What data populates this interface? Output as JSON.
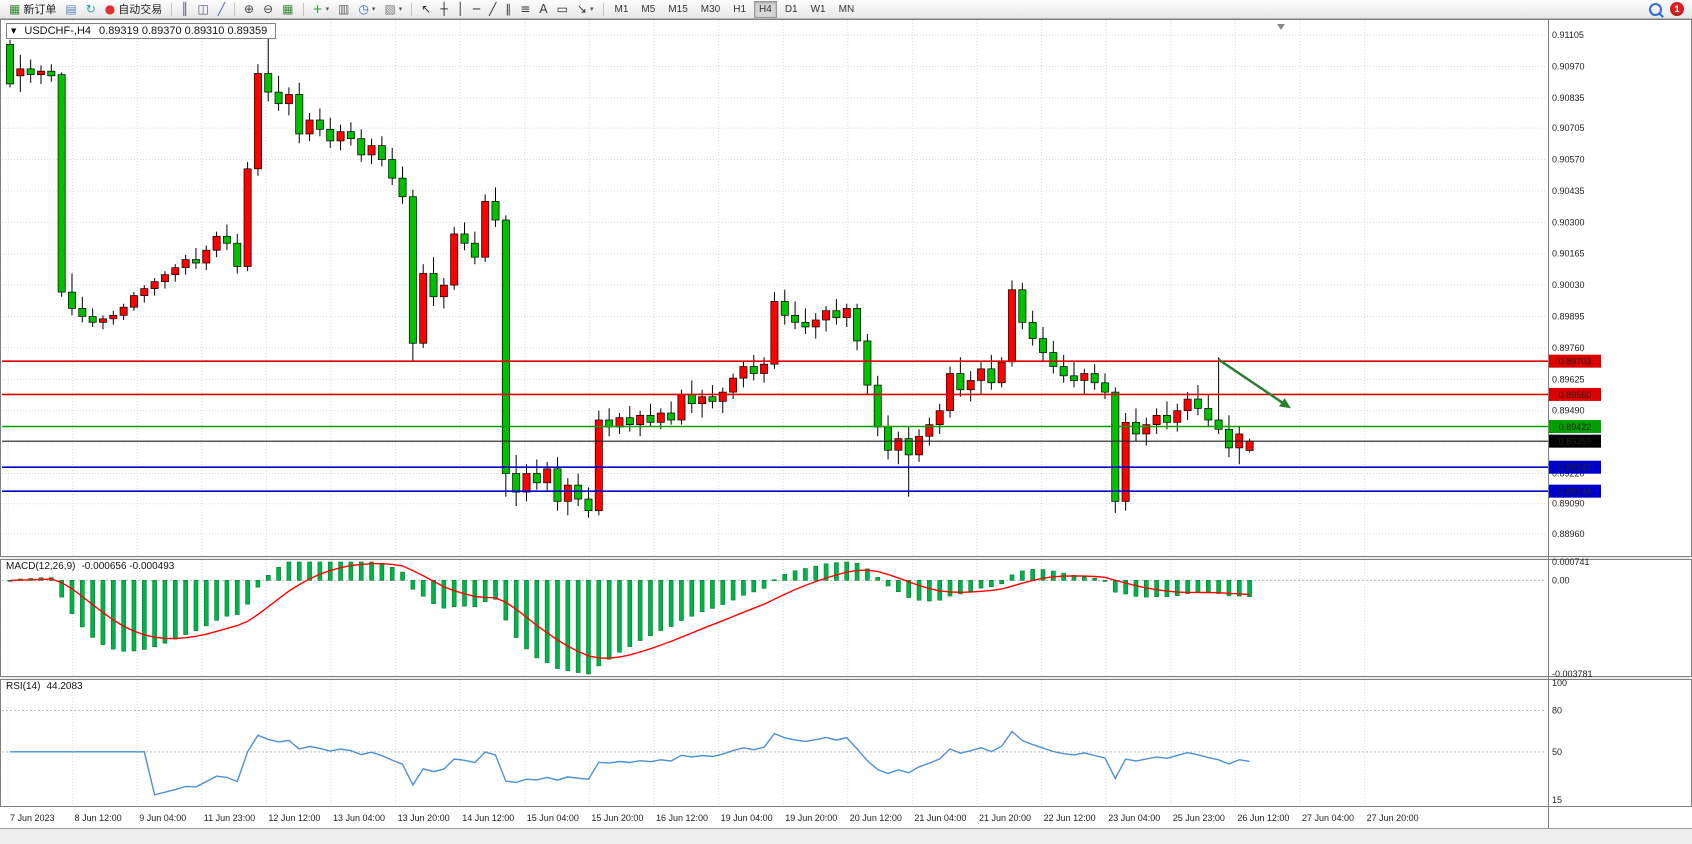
{
  "toolbar": {
    "groups": [
      [
        {
          "name": "new-order",
          "label": "新订单",
          "glyph": "▦",
          "glyph_color": "#2e8b2e"
        },
        {
          "name": "charts-profile",
          "glyph": "▤",
          "glyph_color": "#5b7fc4"
        },
        {
          "name": "refresh",
          "glyph": "↻",
          "glyph_color": "#2f9e9e"
        },
        {
          "name": "autotrade",
          "label": "自动交易",
          "glyph": "●",
          "glyph_color": "#e03030"
        }
      ],
      [
        {
          "name": "bar-chart",
          "glyph": "║",
          "glyph_color": "#555577"
        },
        {
          "name": "candlestick-chart",
          "glyph": "◫",
          "glyph_color": "#555577"
        },
        {
          "name": "line-chart",
          "glyph": "╱",
          "glyph_color": "#4466aa"
        }
      ],
      [
        {
          "name": "zoom-in",
          "glyph": "⊕",
          "glyph_color": "#444444"
        },
        {
          "name": "zoom-out",
          "glyph": "⊖",
          "glyph_color": "#444444"
        },
        {
          "name": "tile-windows",
          "glyph": "▦",
          "glyph_color": "#3c8a3c"
        }
      ],
      [
        {
          "name": "indicators",
          "glyph": "+",
          "glyph_color": "#1fa01f",
          "dropdown": true
        },
        {
          "name": "indicator-windows",
          "glyph": "▥",
          "glyph_color": "#666666"
        },
        {
          "name": "periods",
          "glyph": "◷",
          "glyph_color": "#3366cc",
          "dropdown": true
        },
        {
          "name": "templates",
          "glyph": "▧",
          "glyph_color": "#777777",
          "dropdown": true
        }
      ],
      [
        {
          "name": "cursor",
          "glyph": "↖",
          "glyph_color": "#333333"
        },
        {
          "name": "crosshair",
          "glyph": "┼",
          "glyph_color": "#333333"
        },
        {
          "name": "vertical-line",
          "glyph": "│",
          "glyph_color": "#333333"
        },
        {
          "name": "horizontal-line",
          "glyph": "─",
          "glyph_color": "#333333"
        },
        {
          "name": "trendline",
          "glyph": "╱",
          "glyph_color": "#333333"
        },
        {
          "name": "equidistant-channel",
          "glyph": "∥",
          "glyph_color": "#333333"
        },
        {
          "name": "fibonacci",
          "glyph": "≡",
          "glyph_color": "#333333"
        },
        {
          "name": "text",
          "glyph": "A",
          "glyph_color": "#333333"
        },
        {
          "name": "text-label",
          "glyph": "▭",
          "glyph_color": "#333333"
        },
        {
          "name": "arrows",
          "glyph": "↘",
          "glyph_color": "#333333",
          "dropdown": true
        }
      ]
    ],
    "timeframes": [
      "M1",
      "M5",
      "M15",
      "M30",
      "H1",
      "H4",
      "D1",
      "W1",
      "MN"
    ],
    "active_timeframe": "H4",
    "notification_badge": "1"
  },
  "chart": {
    "symbol_period": "USDCHF-,H4",
    "ohlc_text": "0.89319 0.89370 0.89310 0.89359"
  },
  "indicators": {
    "macd": {
      "name": "MACD(12,26,9)",
      "values_text": "-0.000656 -0.000493"
    },
    "rsi": {
      "name": "RSI(14)",
      "values_text": "44.2083"
    }
  },
  "chart_data": {
    "type": "candlestick",
    "title": "USDCHF-,H4",
    "symbol": "USDCHF-",
    "timeframe": "H4",
    "current_ohlc": {
      "open": 0.89319,
      "high": 0.8937,
      "low": 0.8931,
      "close": 0.89359
    },
    "up_color": "#ff0000",
    "down_color": "#00c000",
    "price_axis": [
      "0.91105",
      "0.90970",
      "0.90835",
      "0.90705",
      "0.90570",
      "0.90435",
      "0.90300",
      "0.90165",
      "0.90030",
      "0.89895",
      "0.89760",
      "0.89625",
      "0.89490",
      "0.89355",
      "0.89220",
      "0.89090",
      "0.88960"
    ],
    "time_axis": [
      "7 Jun 2023",
      "8 Jun 12:00",
      "9 Jun 04:00",
      "11 Jun 23:00",
      "12 Jun 12:00",
      "13 Jun 04:00",
      "13 Jun 20:00",
      "14 Jun 12:00",
      "15 Jun 04:00",
      "15 Jun 20:00",
      "16 Jun 12:00",
      "19 Jun 04:00",
      "19 Jun 20:00",
      "20 Jun 12:00",
      "21 Jun 04:00",
      "21 Jun 20:00",
      "22 Jun 12:00",
      "23 Jun 04:00",
      "25 Jun 23:00",
      "26 Jun 12:00",
      "27 Jun 04:00",
      "27 Jun 20:00"
    ],
    "levels": [
      {
        "price": 0.89703,
        "label": "0.89703",
        "color": "#dd0000"
      },
      {
        "price": 0.8956,
        "label": "0.89560",
        "color": "#dd0000"
      },
      {
        "price": 0.89422,
        "label": "0.89422",
        "color": "#00a000"
      },
      {
        "price": 0.89247,
        "label": "0.89247",
        "color": "#0000cc"
      },
      {
        "price": 0.89144,
        "label": "0.89144",
        "color": "#0000cc"
      }
    ],
    "bid": {
      "price": 0.89359,
      "label": "0.89359",
      "color": "#000000"
    },
    "trend_arrow": {
      "from_bar": 117,
      "from_price": 0.8971,
      "to_bar": 124,
      "to_price": 0.895,
      "color": "#2e7d32"
    },
    "macd": {
      "params": [
        12,
        26,
        9
      ],
      "current_macd": -0.000656,
      "current_signal": -0.000493,
      "axis": [
        "0.000741",
        "0.00",
        "-0.003781"
      ],
      "range": [
        -0.003781,
        0.000741
      ],
      "histogram_color": "#00b44a",
      "signal_color": "#ff0000"
    },
    "rsi": {
      "period": 14,
      "current": 44.2083,
      "axis": [
        "100",
        "80",
        "50",
        "15"
      ],
      "range": [
        15,
        100
      ],
      "levels": [
        80,
        50
      ],
      "line_color": "#4a90d9"
    },
    "candles": [
      [
        0.91065,
        0.91085,
        0.9088,
        0.90895
      ],
      [
        0.9093,
        0.9102,
        0.9086,
        0.9096
      ],
      [
        0.9096,
        0.91,
        0.909,
        0.90935
      ],
      [
        0.90935,
        0.90975,
        0.90895,
        0.9095
      ],
      [
        0.9095,
        0.9098,
        0.90905,
        0.9093
      ],
      [
        0.90935,
        0.90945,
        0.8998,
        0.9
      ],
      [
        0.9,
        0.9008,
        0.899,
        0.8993
      ],
      [
        0.8993,
        0.8998,
        0.8987,
        0.89895
      ],
      [
        0.89895,
        0.8993,
        0.8985,
        0.8987
      ],
      [
        0.8987,
        0.899,
        0.8984,
        0.89885
      ],
      [
        0.89885,
        0.8992,
        0.8986,
        0.899
      ],
      [
        0.899,
        0.8995,
        0.8988,
        0.89935
      ],
      [
        0.89935,
        0.9,
        0.8992,
        0.89985
      ],
      [
        0.89985,
        0.9003,
        0.89955,
        0.90015
      ],
      [
        0.90015,
        0.9006,
        0.89985,
        0.90045
      ],
      [
        0.90045,
        0.9009,
        0.90015,
        0.90075
      ],
      [
        0.90075,
        0.9012,
        0.90045,
        0.90105
      ],
      [
        0.90105,
        0.9016,
        0.90075,
        0.9014
      ],
      [
        0.9014,
        0.9019,
        0.901,
        0.90125
      ],
      [
        0.90125,
        0.902,
        0.90095,
        0.9018
      ],
      [
        0.9018,
        0.9026,
        0.9015,
        0.9024
      ],
      [
        0.9024,
        0.9029,
        0.9018,
        0.9021
      ],
      [
        0.9021,
        0.9025,
        0.9008,
        0.9011
      ],
      [
        0.9011,
        0.9056,
        0.9009,
        0.9053
      ],
      [
        0.9053,
        0.9098,
        0.905,
        0.9094
      ],
      [
        0.9094,
        0.911,
        0.9082,
        0.9086
      ],
      [
        0.9086,
        0.9093,
        0.9078,
        0.9081
      ],
      [
        0.9081,
        0.9088,
        0.9076,
        0.9085
      ],
      [
        0.9085,
        0.909,
        0.9064,
        0.9068
      ],
      [
        0.9068,
        0.9077,
        0.9065,
        0.9074
      ],
      [
        0.9074,
        0.9079,
        0.9067,
        0.907
      ],
      [
        0.907,
        0.9075,
        0.9062,
        0.9065
      ],
      [
        0.9065,
        0.9072,
        0.9061,
        0.9069
      ],
      [
        0.9069,
        0.9073,
        0.9063,
        0.9066
      ],
      [
        0.9066,
        0.907,
        0.9056,
        0.9059
      ],
      [
        0.9059,
        0.9066,
        0.9055,
        0.9063
      ],
      [
        0.9063,
        0.9067,
        0.9054,
        0.9057
      ],
      [
        0.9057,
        0.9062,
        0.9046,
        0.9049
      ],
      [
        0.9049,
        0.9054,
        0.9038,
        0.9041
      ],
      [
        0.9041,
        0.9044,
        0.897,
        0.8978
      ],
      [
        0.8978,
        0.9012,
        0.8976,
        0.9008
      ],
      [
        0.9008,
        0.9015,
        0.8994,
        0.8998
      ],
      [
        0.8998,
        0.9006,
        0.8993,
        0.9003
      ],
      [
        0.9003,
        0.9028,
        0.9001,
        0.9025
      ],
      [
        0.9025,
        0.903,
        0.9018,
        0.9021
      ],
      [
        0.9021,
        0.9026,
        0.9012,
        0.9015
      ],
      [
        0.9015,
        0.9042,
        0.9013,
        0.9039
      ],
      [
        0.9039,
        0.9045,
        0.9028,
        0.9031
      ],
      [
        0.9031,
        0.9033,
        0.8912,
        0.8922
      ],
      [
        0.8922,
        0.893,
        0.8908,
        0.8914
      ],
      [
        0.8914,
        0.8926,
        0.891,
        0.8922
      ],
      [
        0.8922,
        0.8928,
        0.8915,
        0.8918
      ],
      [
        0.8918,
        0.8927,
        0.8914,
        0.8924
      ],
      [
        0.8924,
        0.8929,
        0.8906,
        0.891
      ],
      [
        0.891,
        0.892,
        0.8904,
        0.8917
      ],
      [
        0.8917,
        0.8922,
        0.8908,
        0.8911
      ],
      [
        0.8911,
        0.8916,
        0.8903,
        0.8906
      ],
      [
        0.8906,
        0.8949,
        0.8904,
        0.8945
      ],
      [
        0.8945,
        0.895,
        0.8938,
        0.8942
      ],
      [
        0.8942,
        0.8948,
        0.8939,
        0.8946
      ],
      [
        0.8946,
        0.8951,
        0.894,
        0.8943
      ],
      [
        0.8943,
        0.8949,
        0.8938,
        0.8947
      ],
      [
        0.8947,
        0.8952,
        0.8942,
        0.8944
      ],
      [
        0.8944,
        0.895,
        0.8941,
        0.8948
      ],
      [
        0.8948,
        0.8953,
        0.8943,
        0.8945
      ],
      [
        0.8945,
        0.8958,
        0.8943,
        0.8956
      ],
      [
        0.8956,
        0.8962,
        0.8948,
        0.8952
      ],
      [
        0.8952,
        0.8958,
        0.8946,
        0.8955
      ],
      [
        0.8955,
        0.896,
        0.895,
        0.8953
      ],
      [
        0.8953,
        0.8959,
        0.8948,
        0.8957
      ],
      [
        0.8957,
        0.8965,
        0.8954,
        0.8963
      ],
      [
        0.8963,
        0.897,
        0.8959,
        0.8968
      ],
      [
        0.8968,
        0.8973,
        0.8962,
        0.8965
      ],
      [
        0.8965,
        0.8972,
        0.8961,
        0.8969
      ],
      [
        0.8969,
        0.9,
        0.8967,
        0.8996
      ],
      [
        0.8996,
        0.9001,
        0.8986,
        0.899
      ],
      [
        0.899,
        0.8996,
        0.8984,
        0.8987
      ],
      [
        0.8987,
        0.8993,
        0.8982,
        0.8985
      ],
      [
        0.8985,
        0.8991,
        0.898,
        0.8988
      ],
      [
        0.8988,
        0.8994,
        0.8983,
        0.8992
      ],
      [
        0.8992,
        0.8997,
        0.8986,
        0.8989
      ],
      [
        0.8989,
        0.8995,
        0.8985,
        0.8993
      ],
      [
        0.8993,
        0.8995,
        0.8975,
        0.8979
      ],
      [
        0.8979,
        0.8982,
        0.8956,
        0.896
      ],
      [
        0.896,
        0.8964,
        0.8938,
        0.8942
      ],
      [
        0.8942,
        0.8947,
        0.8928,
        0.8932
      ],
      [
        0.8932,
        0.894,
        0.8926,
        0.8937
      ],
      [
        0.8937,
        0.8942,
        0.8912,
        0.893
      ],
      [
        0.893,
        0.8941,
        0.8927,
        0.8938
      ],
      [
        0.8938,
        0.8946,
        0.8934,
        0.8943
      ],
      [
        0.8943,
        0.8952,
        0.8939,
        0.8949
      ],
      [
        0.8949,
        0.8968,
        0.8946,
        0.8965
      ],
      [
        0.8965,
        0.8972,
        0.8955,
        0.8958
      ],
      [
        0.8958,
        0.8966,
        0.8953,
        0.8962
      ],
      [
        0.8962,
        0.897,
        0.8956,
        0.8967
      ],
      [
        0.8967,
        0.8973,
        0.8958,
        0.8961
      ],
      [
        0.8961,
        0.8972,
        0.8959,
        0.897
      ],
      [
        0.897,
        0.9005,
        0.8968,
        0.9001
      ],
      [
        0.9001,
        0.9004,
        0.8984,
        0.8987
      ],
      [
        0.8987,
        0.8992,
        0.8977,
        0.898
      ],
      [
        0.898,
        0.8985,
        0.897,
        0.8974
      ],
      [
        0.8974,
        0.8979,
        0.8965,
        0.8968
      ],
      [
        0.8968,
        0.8973,
        0.8961,
        0.8964
      ],
      [
        0.8964,
        0.897,
        0.8959,
        0.8962
      ],
      [
        0.8962,
        0.8967,
        0.8956,
        0.8965
      ],
      [
        0.8965,
        0.8969,
        0.8958,
        0.8961
      ],
      [
        0.8961,
        0.8965,
        0.8954,
        0.8957
      ],
      [
        0.8957,
        0.8959,
        0.8905,
        0.891
      ],
      [
        0.891,
        0.8948,
        0.8906,
        0.8944
      ],
      [
        0.8944,
        0.895,
        0.8936,
        0.8939
      ],
      [
        0.8939,
        0.8946,
        0.8934,
        0.8943
      ],
      [
        0.8943,
        0.895,
        0.8939,
        0.8947
      ],
      [
        0.8947,
        0.8953,
        0.8941,
        0.8944
      ],
      [
        0.8944,
        0.8952,
        0.894,
        0.8949
      ],
      [
        0.8949,
        0.8957,
        0.8945,
        0.8954
      ],
      [
        0.8954,
        0.896,
        0.8947,
        0.895
      ],
      [
        0.895,
        0.8956,
        0.8942,
        0.8945
      ],
      [
        0.8945,
        0.8972,
        0.8939,
        0.8941
      ],
      [
        0.8941,
        0.8947,
        0.8929,
        0.8933
      ],
      [
        0.8933,
        0.8942,
        0.8926,
        0.8939
      ],
      [
        0.89319,
        0.8937,
        0.8931,
        0.89359
      ]
    ]
  }
}
